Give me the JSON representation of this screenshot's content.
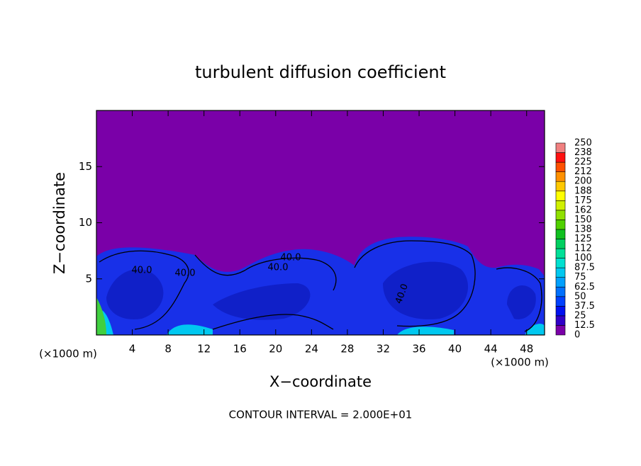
{
  "chart_data": {
    "type": "contour",
    "title": "turbulent diffusion coefficient",
    "x_label": "X−coordinate",
    "y_label": "Z−coordinate",
    "x_unit": "(×1000 m)",
    "xlim": [
      0,
      50
    ],
    "ylim": [
      0,
      20
    ],
    "xticks": [
      4,
      8,
      12,
      16,
      20,
      24,
      28,
      32,
      36,
      40,
      44,
      48
    ],
    "yticks": [
      5,
      10,
      15
    ],
    "contour_labels": [
      "40.0",
      "40.0",
      "40.0",
      "40.0",
      "40.0"
    ],
    "annotation": "CONTOUR INTERVAL = 2.000E+01",
    "colorbar": {
      "levels": [
        0,
        12.5,
        25,
        37.5,
        50,
        62.5,
        75,
        87.5,
        100,
        112,
        125,
        138,
        150,
        162,
        175,
        188,
        200,
        212,
        225,
        238,
        250
      ],
      "colors": [
        "#7a00a8",
        "#3000c8",
        "#0010f0",
        "#0040ff",
        "#0070ff",
        "#00a0ff",
        "#00c8f0",
        "#00e0d0",
        "#00e098",
        "#00d060",
        "#10c020",
        "#50d000",
        "#90e000",
        "#d0f000",
        "#ffff00",
        "#ffc800",
        "#ff9000",
        "#ff5000",
        "#ff1010",
        "#f08080"
      ]
    }
  }
}
